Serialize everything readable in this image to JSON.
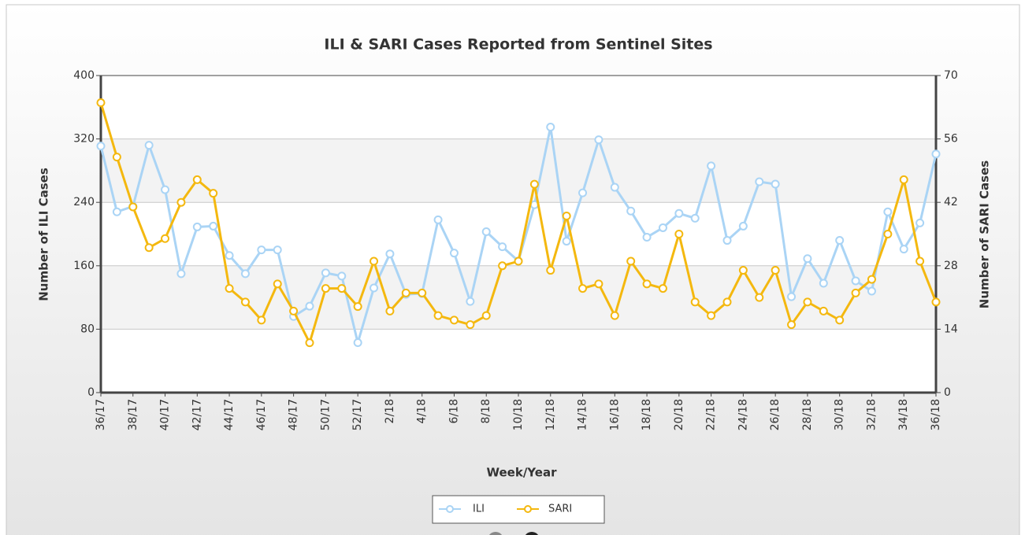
{
  "chart_data": {
    "type": "line",
    "title": "ILI & SARI Cases Reported from Sentinel Sites",
    "x_label": "Week/Year",
    "y_label": "Number of ILI Cases",
    "y2_label": "Number of SARI Cases",
    "categories": [
      "36/17",
      null,
      "38/17",
      null,
      "40/17",
      null,
      "42/17",
      null,
      "44/17",
      null,
      "46/17",
      null,
      "48/17",
      null,
      "50/17",
      null,
      "52/17",
      null,
      "2/18",
      null,
      "4/18",
      null,
      "6/18",
      null,
      "8/18",
      null,
      "10/18",
      null,
      "12/18",
      null,
      "14/18",
      null,
      "16/18",
      null,
      "18/18",
      null,
      "20/18",
      null,
      "22/18",
      null,
      "24/18",
      null,
      "26/18",
      null,
      "28/18",
      null,
      "30/18",
      null,
      "32/18",
      null,
      "34/18",
      null,
      "36/18"
    ],
    "series": [
      {
        "name": "ILI",
        "color": "#aad4f5",
        "axis": "y",
        "values": [
          311,
          228,
          235,
          312,
          256,
          150,
          209,
          210,
          173,
          150,
          180,
          180,
          96,
          109,
          151,
          147,
          63,
          132,
          175,
          124,
          125,
          218,
          176,
          115,
          203,
          184,
          166,
          237,
          335,
          191,
          252,
          319,
          259,
          229,
          196,
          208,
          226,
          220,
          286,
          192,
          210,
          266,
          263,
          121,
          169,
          138,
          192,
          141,
          128,
          228,
          181,
          214,
          301
        ]
      },
      {
        "name": "SARI",
        "color": "#f4b80f",
        "axis": "y2",
        "values": [
          64,
          52,
          41,
          32,
          34,
          42,
          47,
          44,
          23,
          20,
          16,
          24,
          18,
          11,
          23,
          23,
          19,
          29,
          18,
          22,
          22,
          17,
          16,
          15,
          17,
          28,
          29,
          46,
          27,
          39,
          23,
          24,
          17,
          29,
          24,
          23,
          35,
          20,
          17,
          20,
          27,
          21,
          27,
          15,
          20,
          18,
          16,
          22,
          25,
          35,
          47,
          29,
          20
        ]
      }
    ],
    "ylim": [
      0,
      400
    ],
    "yticks": [
      0,
      80,
      160,
      240,
      320,
      400
    ],
    "y2lim": [
      0,
      70
    ],
    "y2ticks": [
      0,
      14,
      28,
      42,
      56,
      70
    ],
    "grid": true
  }
}
